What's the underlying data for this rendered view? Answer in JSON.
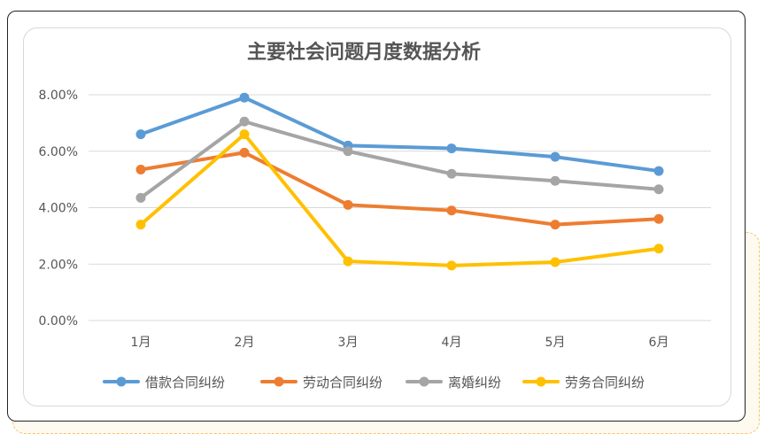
{
  "chart_data": {
    "type": "line",
    "title": "主要社会问题月度数据分析",
    "categories": [
      "1月",
      "2月",
      "3月",
      "4月",
      "5月",
      "6月"
    ],
    "ylim": [
      0,
      8
    ],
    "yticks": [
      0,
      2,
      4,
      6,
      8
    ],
    "ytick_labels": [
      "0.00%",
      "2.00%",
      "4.00%",
      "6.00%",
      "8.00%"
    ],
    "grid": true,
    "legend_position": "bottom",
    "series": [
      {
        "name": "借款合同纠纷",
        "color": "#5b9bd5",
        "values": [
          6.6,
          7.9,
          6.2,
          6.1,
          5.8,
          5.3
        ]
      },
      {
        "name": "劳动合同纠纷",
        "color": "#ed7d31",
        "values": [
          5.35,
          5.95,
          4.1,
          3.9,
          3.4,
          3.6
        ]
      },
      {
        "name": "离婚纠纷",
        "color": "#a5a5a5",
        "values": [
          4.35,
          7.05,
          6.0,
          5.2,
          4.95,
          4.65
        ]
      },
      {
        "name": "劳务合同纠纷",
        "color": "#ffc000",
        "values": [
          3.4,
          6.6,
          2.1,
          1.95,
          2.07,
          2.55
        ]
      }
    ]
  }
}
